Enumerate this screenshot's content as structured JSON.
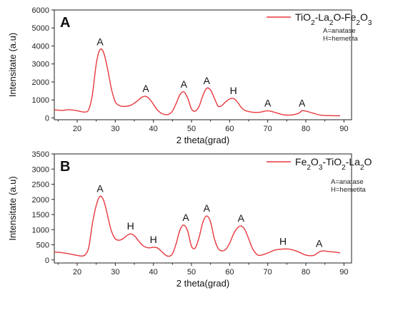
{
  "colors": {
    "series": "#e8383d",
    "axis": "#222222"
  },
  "chart_data": [
    {
      "type": "line",
      "panel_label": "A",
      "xlabel": "2 theta(grad)",
      "ylabel": "Intensitate (a.u)",
      "xlim": [
        14,
        92
      ],
      "ylim": [
        -100,
        6000
      ],
      "xticks": [
        "20",
        "30",
        "40",
        "50",
        "60",
        "70",
        "80",
        "90"
      ],
      "yticks": [
        "0",
        "1000",
        "2000",
        "3000",
        "4000",
        "5000",
        "6000"
      ],
      "grid": false,
      "legend_position": "top-right",
      "legend_notes": [
        "A=anatase",
        "H=hemetita"
      ],
      "series": [
        {
          "name": "TiO2-La2O-Fe2O3",
          "x": [
            14,
            16,
            18,
            20,
            21,
            22,
            23,
            24,
            25,
            26,
            27,
            28,
            29,
            30,
            31,
            32,
            33,
            34,
            35,
            36,
            37,
            38,
            39,
            40,
            41,
            42,
            43,
            44,
            45,
            46,
            47,
            48,
            49,
            50,
            51,
            52,
            53,
            54,
            55,
            56,
            57,
            58,
            59,
            60,
            61,
            62,
            63,
            64,
            66,
            68,
            70,
            72,
            74,
            76,
            78,
            79,
            80,
            82,
            84,
            86,
            88,
            89
          ],
          "y": [
            450,
            420,
            460,
            400,
            350,
            330,
            450,
            1300,
            3000,
            3800,
            3600,
            2700,
            1600,
            900,
            700,
            640,
            650,
            700,
            820,
            980,
            1150,
            1200,
            1050,
            760,
            450,
            270,
            190,
            200,
            380,
            820,
            1300,
            1450,
            1100,
            500,
            380,
            650,
            1250,
            1650,
            1550,
            1100,
            650,
            700,
            900,
            1050,
            1080,
            900,
            600,
            420,
            320,
            320,
            400,
            300,
            180,
            160,
            250,
            400,
            380,
            260,
            150,
            130,
            120,
            120
          ]
        }
      ],
      "peak_labels": [
        {
          "text": "A",
          "x": 26,
          "y": 3800
        },
        {
          "text": "A",
          "x": 38,
          "y": 1200
        },
        {
          "text": "A",
          "x": 48,
          "y": 1450
        },
        {
          "text": "A",
          "x": 54,
          "y": 1650
        },
        {
          "text": "H",
          "x": 61,
          "y": 1080
        },
        {
          "text": "A",
          "x": 70,
          "y": 400
        },
        {
          "text": "A",
          "x": 79,
          "y": 400
        }
      ]
    },
    {
      "type": "line",
      "panel_label": "B",
      "xlabel": "2 theta(grad)",
      "ylabel": "Intensitate (a.u)",
      "xlim": [
        14,
        92
      ],
      "ylim": [
        -100,
        3500
      ],
      "xticks": [
        "20",
        "30",
        "40",
        "50",
        "60",
        "70",
        "80",
        "90"
      ],
      "yticks": [
        "0",
        "500",
        "1000",
        "1500",
        "2000",
        "2500",
        "3000",
        "3500"
      ],
      "grid": false,
      "legend_position": "top-right",
      "legend_notes": [
        "A=anatase",
        "H=hemetita"
      ],
      "series": [
        {
          "name": "Fe2O3-TiO2-La2O",
          "x": [
            14,
            16,
            18,
            20,
            21,
            22,
            23,
            24,
            25,
            26,
            27,
            28,
            29,
            30,
            31,
            32,
            33,
            34,
            35,
            36,
            37,
            38,
            39,
            40,
            41,
            42,
            43,
            44,
            45,
            46,
            47,
            48,
            49,
            50,
            51,
            52,
            53,
            54,
            55,
            56,
            57,
            58,
            59,
            60,
            61,
            62,
            63,
            64,
            65,
            66,
            67,
            68,
            70,
            72,
            74,
            76,
            78,
            80,
            82,
            84,
            86,
            88,
            89
          ],
          "y": [
            260,
            240,
            200,
            150,
            130,
            160,
            400,
            1200,
            1800,
            2100,
            1950,
            1450,
            950,
            700,
            650,
            700,
            800,
            860,
            800,
            650,
            500,
            420,
            400,
            420,
            400,
            300,
            180,
            120,
            200,
            550,
            1000,
            1150,
            950,
            450,
            400,
            750,
            1250,
            1450,
            1250,
            700,
            380,
            300,
            350,
            550,
            850,
            1050,
            1120,
            1000,
            700,
            380,
            200,
            150,
            230,
            330,
            360,
            350,
            270,
            160,
            150,
            290,
            280,
            250,
            230
          ]
        }
      ],
      "peak_labels": [
        {
          "text": "A",
          "x": 26,
          "y": 2100
        },
        {
          "text": "H",
          "x": 34,
          "y": 860
        },
        {
          "text": "H",
          "x": 40,
          "y": 420
        },
        {
          "text": "A",
          "x": 48.5,
          "y": 1150
        },
        {
          "text": "A",
          "x": 54,
          "y": 1450
        },
        {
          "text": "A",
          "x": 63,
          "y": 1120
        },
        {
          "text": "H",
          "x": 74,
          "y": 360
        },
        {
          "text": "A",
          "x": 83.5,
          "y": 290
        }
      ]
    }
  ]
}
